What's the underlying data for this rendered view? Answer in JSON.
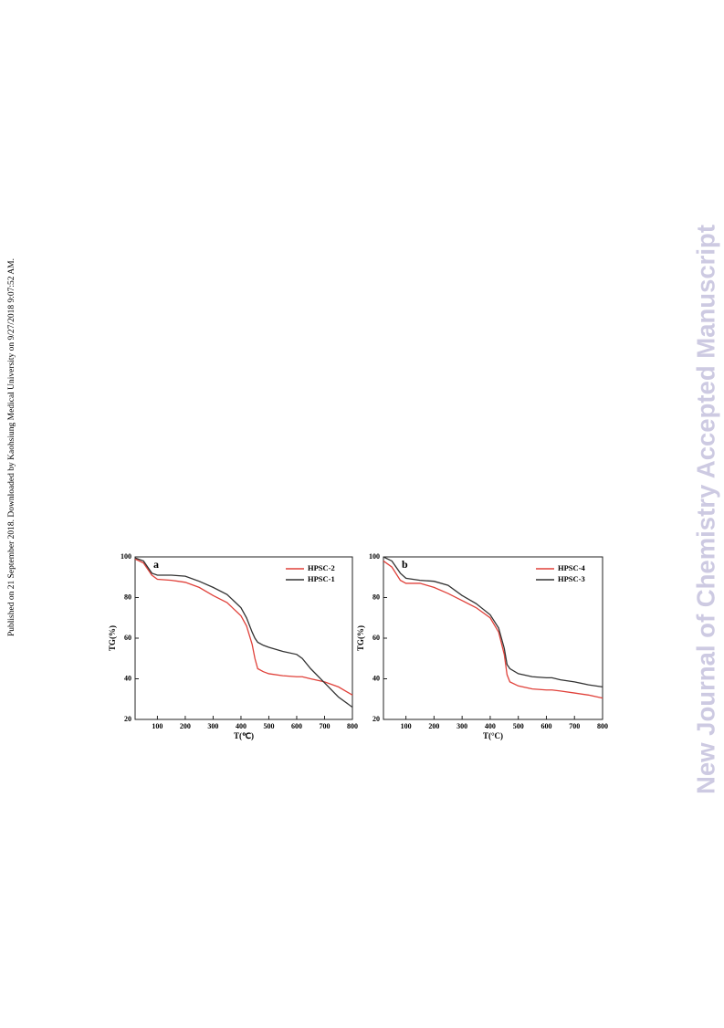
{
  "sidebar": {
    "left": "Published on 21 September 2018. Downloaded by Kaohsiung Medical University on 9/27/2018 9:07:52 AM.",
    "right": "New Journal of Chemistry Accepted Manuscript"
  },
  "chart_data": [
    {
      "type": "line",
      "annotation": "a",
      "x_label": "T(℃)",
      "y_label": "TG(%)",
      "x": [
        20,
        50,
        80,
        100,
        150,
        200,
        250,
        300,
        350,
        400,
        420,
        440,
        450,
        460,
        480,
        500,
        550,
        600,
        620,
        650,
        700,
        750,
        800
      ],
      "series": [
        {
          "name": "HPSC-2",
          "color": "#e0413a",
          "values": [
            99,
            97,
            91,
            89,
            88.5,
            87.5,
            85,
            81,
            77.5,
            71,
            66,
            57,
            50,
            45,
            43.5,
            42.5,
            41.5,
            41,
            41,
            40,
            38.5,
            36,
            32
          ]
        },
        {
          "name": "HPSC-1",
          "color": "#333333",
          "values": [
            99.5,
            98,
            92,
            91,
            91,
            90.5,
            88,
            85,
            81.5,
            75,
            70,
            63,
            60,
            58,
            56.5,
            55.5,
            53.5,
            52,
            50,
            45,
            38,
            31,
            26
          ]
        }
      ],
      "xlim": [
        20,
        800
      ],
      "ylim": [
        20,
        100
      ],
      "xticks": [
        100,
        200,
        300,
        400,
        500,
        600,
        700,
        800
      ],
      "yticks": [
        20,
        40,
        60,
        80,
        100
      ],
      "legend": "upper right"
    },
    {
      "type": "line",
      "annotation": "b",
      "x_label": "T(°C)",
      "y_label": "TG(%)",
      "x": [
        20,
        50,
        80,
        100,
        150,
        200,
        250,
        300,
        350,
        400,
        430,
        450,
        460,
        470,
        500,
        550,
        600,
        620,
        650,
        700,
        750,
        800
      ],
      "series": [
        {
          "name": "HPSC-4",
          "color": "#e0413a",
          "values": [
            98,
            95,
            88.5,
            87,
            87,
            85,
            82,
            78.5,
            75,
            70,
            63,
            52,
            42,
            38.5,
            36.5,
            35,
            34.5,
            34.5,
            34,
            33,
            32,
            30.5
          ]
        },
        {
          "name": "HPSC-3",
          "color": "#333333",
          "values": [
            100,
            98,
            92,
            89.5,
            88.5,
            88,
            86,
            81,
            77,
            71.5,
            65,
            55,
            47,
            45,
            42.5,
            41,
            40.5,
            40.5,
            39.5,
            38.5,
            37,
            36
          ]
        }
      ],
      "xlim": [
        20,
        800
      ],
      "ylim": [
        20,
        100
      ],
      "xticks": [
        100,
        200,
        300,
        400,
        500,
        600,
        700,
        800
      ],
      "yticks": [
        20,
        40,
        60,
        80,
        100
      ],
      "legend": "upper right"
    }
  ]
}
